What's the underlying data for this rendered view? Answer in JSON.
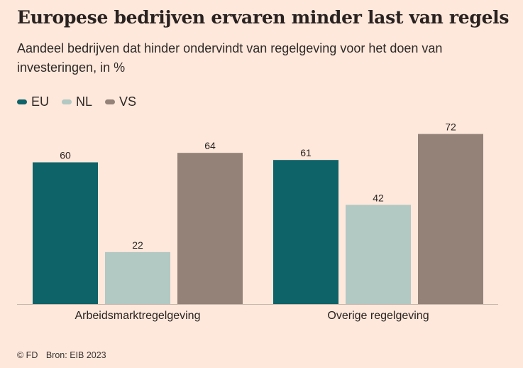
{
  "title": "Europese bedrijven ervaren minder last van regels",
  "subtitle": "Aandeel bedrijven dat hinder ondervindt van regelgeving voor het doen van investeringen, in %",
  "footer": {
    "copyright": "© FD",
    "source": "Bron: EIB 2023"
  },
  "colors": {
    "EU": "#0e6369",
    "NL": "#b2c8c3",
    "VS": "#948279",
    "background": "#fde8db",
    "axis": "#c9b7ad"
  },
  "chart_data": {
    "type": "bar",
    "categories": [
      "Arbeidsmarktregelgeving",
      "Overige regelgeving"
    ],
    "series": [
      {
        "name": "EU",
        "values": [
          60,
          61
        ]
      },
      {
        "name": "NL",
        "values": [
          22,
          42
        ]
      },
      {
        "name": "VS",
        "values": [
          64,
          72
        ]
      }
    ],
    "ylim": [
      0,
      80
    ],
    "grid": false,
    "legend": "top-left",
    "data_labels": true
  }
}
